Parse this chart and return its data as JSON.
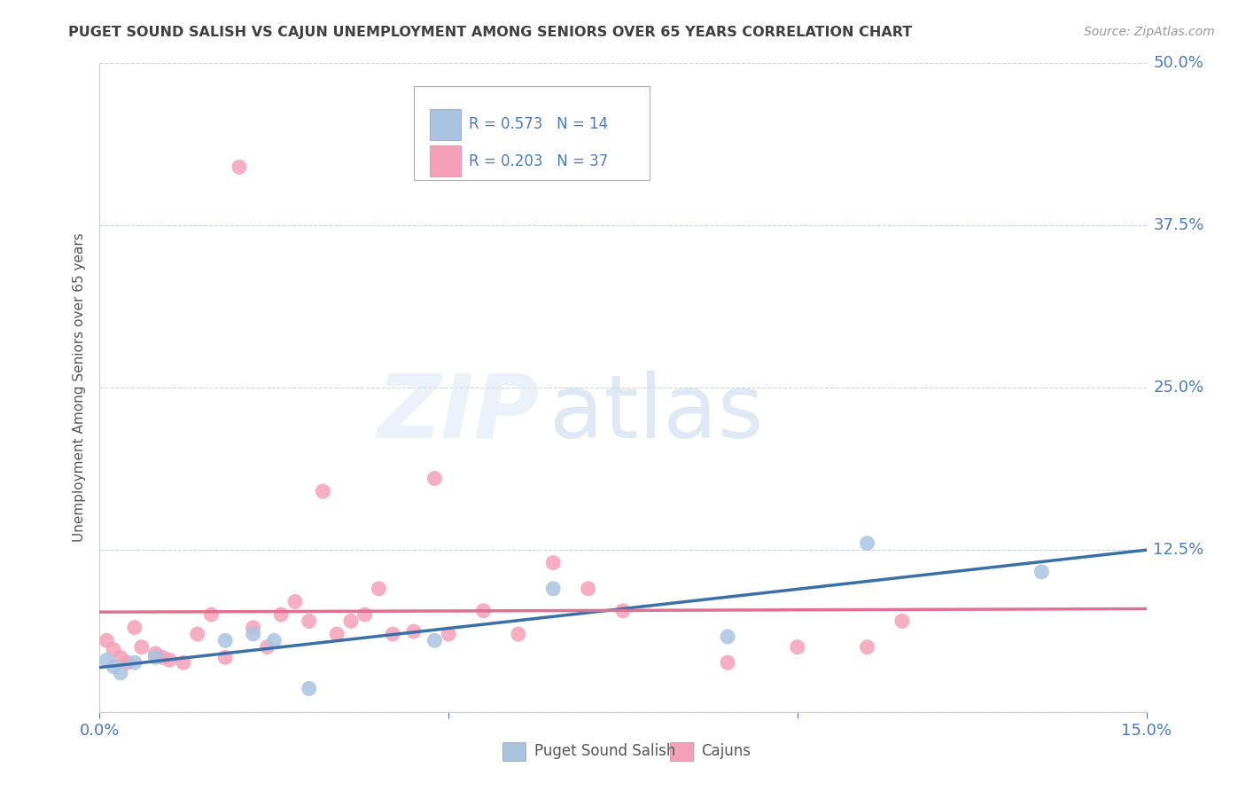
{
  "title": "PUGET SOUND SALISH VS CAJUN UNEMPLOYMENT AMONG SENIORS OVER 65 YEARS CORRELATION CHART",
  "source": "Source: ZipAtlas.com",
  "ylabel": "Unemployment Among Seniors over 65 years",
  "xlim": [
    0.0,
    0.15
  ],
  "ylim": [
    0.0,
    0.5
  ],
  "yticks_right": [
    0.0,
    0.125,
    0.25,
    0.375,
    0.5
  ],
  "ytick_labels_right": [
    "0.0%",
    "12.5%",
    "25.0%",
    "37.5%",
    "50.0%"
  ],
  "blue_color": "#aac4e0",
  "pink_color": "#f4a0b8",
  "blue_line_color": "#3a6fa8",
  "pink_line_color": "#e07090",
  "background_color": "#ffffff",
  "grid_color": "#c8d4e8",
  "title_color": "#404040",
  "axis_label_color": "#555555",
  "tick_label_color": "#4a7abf",
  "blue_x": [
    0.001,
    0.002,
    0.003,
    0.005,
    0.008,
    0.018,
    0.022,
    0.025,
    0.03,
    0.048,
    0.065,
    0.09,
    0.11,
    0.135
  ],
  "blue_y": [
    0.04,
    0.035,
    0.03,
    0.038,
    0.042,
    0.055,
    0.06,
    0.055,
    0.018,
    0.055,
    0.095,
    0.058,
    0.13,
    0.108
  ],
  "pink_x": [
    0.001,
    0.002,
    0.003,
    0.004,
    0.005,
    0.006,
    0.008,
    0.009,
    0.01,
    0.012,
    0.014,
    0.016,
    0.018,
    0.02,
    0.022,
    0.024,
    0.026,
    0.028,
    0.03,
    0.032,
    0.034,
    0.036,
    0.038,
    0.04,
    0.042,
    0.045,
    0.048,
    0.05,
    0.055,
    0.06,
    0.065,
    0.07,
    0.075,
    0.09,
    0.1,
    0.11,
    0.115
  ],
  "pink_y": [
    0.055,
    0.048,
    0.042,
    0.038,
    0.065,
    0.05,
    0.045,
    0.042,
    0.04,
    0.038,
    0.06,
    0.075,
    0.042,
    0.42,
    0.065,
    0.05,
    0.075,
    0.085,
    0.07,
    0.17,
    0.06,
    0.07,
    0.075,
    0.095,
    0.06,
    0.062,
    0.18,
    0.06,
    0.078,
    0.06,
    0.115,
    0.095,
    0.078,
    0.038,
    0.05,
    0.05,
    0.07
  ]
}
